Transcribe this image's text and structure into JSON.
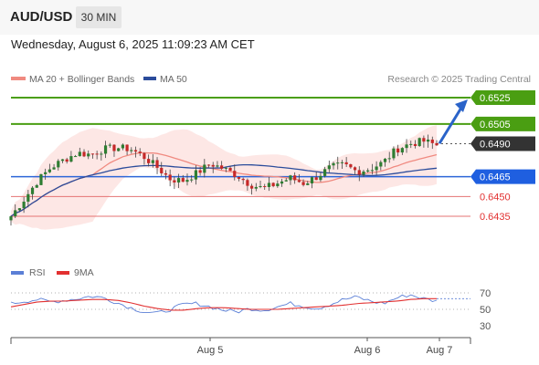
{
  "header": {
    "pair": "AUD/USD",
    "timeframe": "30 MIN",
    "datetime": "Wednesday, August 6, 2025 11:09:23 AM CET"
  },
  "legend": {
    "ma20": {
      "label": "MA 20 + Bollinger Bands",
      "color": "#f08a80"
    },
    "ma50": {
      "label": "MA 50",
      "color": "#2b4c9b"
    },
    "credit": "Research © 2025 Trading Central"
  },
  "rsi_legend": {
    "rsi": {
      "label": "RSI",
      "color": "#5b7fd6"
    },
    "ma9": {
      "label": "9MA",
      "color": "#e23030"
    }
  },
  "chart_data": {
    "type": "candlestick",
    "instrument": "AUD/USD",
    "interval": "30 MIN",
    "x_ticks": [
      "Aug 5",
      "Aug 6",
      "Aug 7"
    ],
    "current_price": 0.649,
    "levels": [
      {
        "value": 0.6525,
        "label": "0.6525",
        "kind": "resistance-target"
      },
      {
        "value": 0.6505,
        "label": "0.6505",
        "kind": "resistance"
      },
      {
        "value": 0.649,
        "label": "0.6490",
        "kind": "last-price"
      },
      {
        "value": 0.6465,
        "label": "0.6465",
        "kind": "pivot"
      },
      {
        "value": 0.645,
        "label": "0.6450",
        "kind": "support"
      },
      {
        "value": 0.6435,
        "label": "0.6435",
        "kind": "support"
      }
    ],
    "path": [
      0.6435,
      0.6448,
      0.6462,
      0.6472,
      0.6478,
      0.6483,
      0.6482,
      0.6486,
      0.6487,
      0.6486,
      0.648,
      0.6472,
      0.6463,
      0.6462,
      0.6468,
      0.6475,
      0.6471,
      0.6466,
      0.6459,
      0.6456,
      0.646,
      0.6464,
      0.646,
      0.6465,
      0.6472,
      0.6474,
      0.6469,
      0.6471,
      0.6476,
      0.6486,
      0.649,
      0.6492,
      0.6489
    ],
    "forecast_arrow_to": 0.6525,
    "rsi": {
      "levels": [
        70,
        50,
        30
      ],
      "ylim": [
        25,
        75
      ],
      "rsi_path": [
        57,
        60,
        62,
        59,
        61,
        63,
        66,
        64,
        58,
        52,
        47,
        45,
        50,
        56,
        57,
        53,
        49,
        47,
        51,
        49,
        53,
        57,
        54,
        51,
        56,
        62,
        65,
        60,
        57,
        64,
        68,
        63,
        60
      ],
      "ma9_path": [
        53,
        56,
        59,
        60,
        60,
        61,
        62,
        62,
        61,
        58,
        54,
        51,
        49,
        49,
        51,
        52,
        52,
        51,
        50,
        50,
        50,
        51,
        52,
        53,
        54,
        55,
        57,
        58,
        59,
        60,
        62,
        63,
        63
      ]
    }
  }
}
